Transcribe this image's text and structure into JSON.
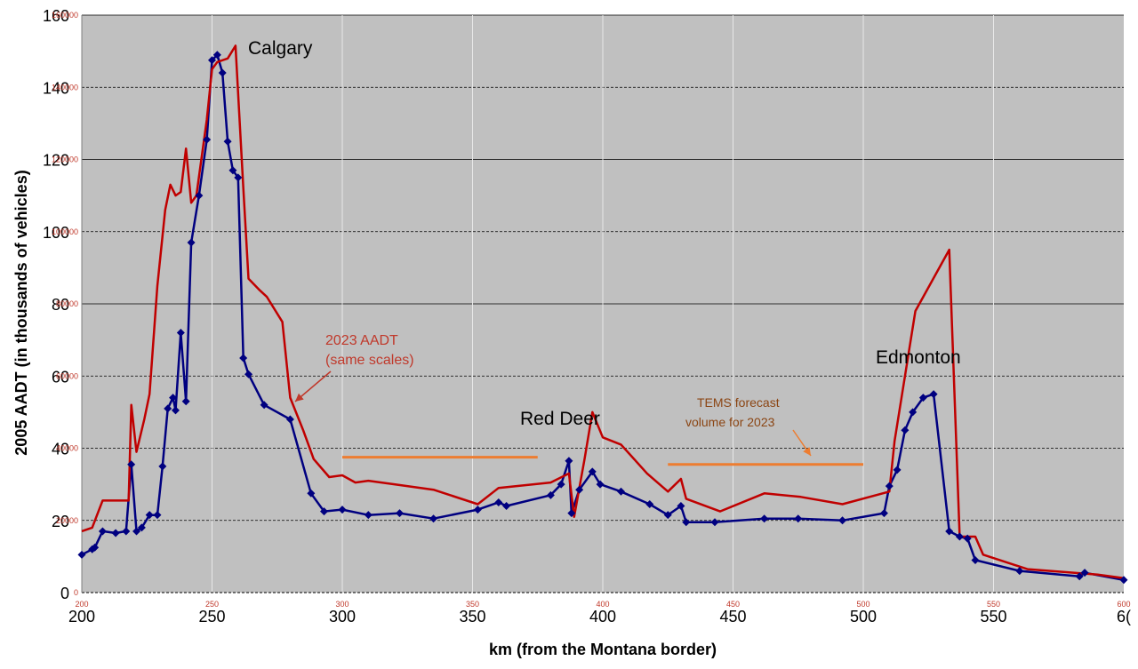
{
  "chart_data": {
    "type": "line",
    "xlabel": "km (from the Montana border)",
    "ylabel": "2005 AADT (in thousands of vehicles)",
    "xlim": [
      200,
      600
    ],
    "ylim": [
      0,
      160
    ],
    "x_ticks": [
      "200",
      "250",
      "300",
      "350",
      "400",
      "450",
      "500",
      "550",
      "6("
    ],
    "x_ticks_secondary": [
      "200",
      "250",
      "300",
      "350",
      "400",
      "450",
      "500",
      "550",
      "600"
    ],
    "y_ticks": [
      "0",
      "20",
      "40",
      "60",
      "80",
      "100",
      "120",
      "140",
      "160"
    ],
    "y_ticks_secondary": [
      "0",
      "20000",
      "40000",
      "60000",
      "80000",
      "100000",
      "120000",
      "140000",
      "160000"
    ],
    "grid": true,
    "colors": {
      "plot_bg": "#c0c0c0",
      "series_2005": "#000080",
      "series_2023": "#c00000",
      "tems": "#ed7d31",
      "annotation_red": "#c0392b",
      "annotation_brown": "#8b4513"
    },
    "series": [
      {
        "key": "aadt_2005",
        "markers": true,
        "points": [
          [
            200,
            10.5
          ],
          [
            204,
            12
          ],
          [
            205,
            12.5
          ],
          [
            208,
            17
          ],
          [
            213,
            16.5
          ],
          [
            217,
            17
          ],
          [
            219,
            35.5
          ],
          [
            221,
            17
          ],
          [
            223,
            18
          ],
          [
            226,
            21.5
          ],
          [
            229,
            21.5
          ],
          [
            231,
            35
          ],
          [
            233,
            51
          ],
          [
            235,
            54
          ],
          [
            236,
            50.5
          ],
          [
            238,
            72
          ],
          [
            240,
            53
          ],
          [
            242,
            97
          ],
          [
            245,
            110
          ],
          [
            248,
            125.5
          ],
          [
            250,
            147.5
          ],
          [
            252,
            149
          ],
          [
            254,
            144
          ],
          [
            256,
            125
          ],
          [
            258,
            117
          ],
          [
            260,
            115
          ],
          [
            262,
            65
          ],
          [
            264,
            60.5
          ],
          [
            270,
            52
          ],
          [
            280,
            48
          ],
          [
            288,
            27.5
          ],
          [
            293,
            22.5
          ],
          [
            300,
            23
          ],
          [
            310,
            21.5
          ],
          [
            322,
            22
          ],
          [
            335,
            20.5
          ],
          [
            352,
            23
          ],
          [
            360,
            25
          ],
          [
            363,
            24
          ],
          [
            380,
            27
          ],
          [
            384,
            30
          ],
          [
            387,
            36.5
          ],
          [
            388,
            22
          ],
          [
            391,
            28.5
          ],
          [
            396,
            33.5
          ],
          [
            399,
            30
          ],
          [
            407,
            28
          ],
          [
            418,
            24.5
          ],
          [
            425,
            21.5
          ],
          [
            430,
            24
          ],
          [
            432,
            19.5
          ],
          [
            443,
            19.5
          ],
          [
            462,
            20.5
          ],
          [
            475,
            20.5
          ],
          [
            492,
            20
          ],
          [
            508,
            22
          ],
          [
            510,
            29.5
          ],
          [
            513,
            34
          ],
          [
            516,
            45
          ],
          [
            519,
            50
          ],
          [
            523,
            54
          ],
          [
            527,
            55
          ],
          [
            533,
            17
          ],
          [
            537,
            15.5
          ],
          [
            540,
            15
          ],
          [
            543,
            9
          ],
          [
            560,
            6
          ],
          [
            583,
            4.5
          ],
          [
            585,
            5.5
          ],
          [
            600,
            3.5
          ]
        ]
      },
      {
        "key": "aadt_2023",
        "markers": false,
        "points": [
          [
            200,
            17
          ],
          [
            204,
            18
          ],
          [
            208,
            25.5
          ],
          [
            218,
            25.5
          ],
          [
            219,
            52
          ],
          [
            221,
            39
          ],
          [
            224,
            48
          ],
          [
            226,
            55
          ],
          [
            229,
            85
          ],
          [
            232,
            106
          ],
          [
            234,
            113
          ],
          [
            236,
            110
          ],
          [
            238,
            111
          ],
          [
            240,
            123
          ],
          [
            242,
            108
          ],
          [
            244,
            110
          ],
          [
            248,
            131
          ],
          [
            250,
            145
          ],
          [
            252,
            147
          ],
          [
            256,
            148
          ],
          [
            259,
            151.5
          ],
          [
            262,
            112
          ],
          [
            264,
            87
          ],
          [
            268,
            84
          ],
          [
            271,
            82
          ],
          [
            277,
            75
          ],
          [
            280,
            54
          ],
          [
            285,
            45
          ],
          [
            289,
            37
          ],
          [
            295,
            32
          ],
          [
            300,
            32.5
          ],
          [
            305,
            30.5
          ],
          [
            310,
            31
          ],
          [
            320,
            30
          ],
          [
            335,
            28.5
          ],
          [
            352,
            24.5
          ],
          [
            360,
            29
          ],
          [
            380,
            30.5
          ],
          [
            387,
            33
          ],
          [
            389,
            21
          ],
          [
            393,
            37
          ],
          [
            396,
            50
          ],
          [
            400,
            43
          ],
          [
            407,
            41
          ],
          [
            417,
            33
          ],
          [
            425,
            28
          ],
          [
            430,
            31.5
          ],
          [
            432,
            26
          ],
          [
            445,
            22.5
          ],
          [
            462,
            27.5
          ],
          [
            476,
            26.5
          ],
          [
            492,
            24.5
          ],
          [
            510,
            28
          ],
          [
            512,
            42
          ],
          [
            520,
            78
          ],
          [
            533,
            95
          ],
          [
            537,
            15.5
          ],
          [
            540,
            15.5
          ],
          [
            543,
            15.5
          ],
          [
            546,
            10.5
          ],
          [
            563,
            6.5
          ],
          [
            590,
            5
          ],
          [
            600,
            4
          ]
        ]
      }
    ],
    "tems_lines": [
      {
        "x": [
          300,
          375
        ],
        "y": 37.5
      },
      {
        "x": [
          425,
          500
        ],
        "y": 35.5
      }
    ],
    "annotations": {
      "calgary": "Calgary",
      "red_deer": "Red Deer",
      "edmonton": "Edmonton",
      "aadt_2023_line1": "2023 AADT",
      "aadt_2023_line2": "(same scales)",
      "tems_line1": "TEMS forecast",
      "tems_line2": "volume for 2023"
    }
  }
}
